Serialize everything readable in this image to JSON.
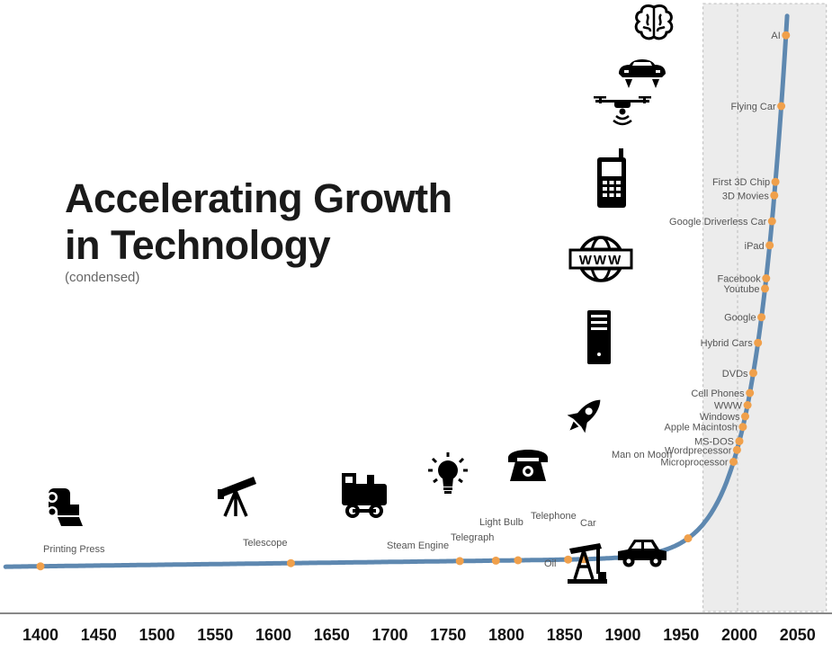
{
  "title_line1": "Accelerating Growth",
  "title_line2": "in Technology",
  "subtitle": "(condensed)",
  "colors": {
    "curve": "#5e88b0",
    "dot": "#f0a04b",
    "axis": "#888888",
    "label": "#555555",
    "future_band": "#ececec"
  },
  "chart_data": {
    "type": "line",
    "xlim": [
      1380,
      2055
    ],
    "x_ticks": [
      1400,
      1450,
      1500,
      1550,
      1600,
      1650,
      1700,
      1750,
      1800,
      1850,
      1900,
      1950,
      2000,
      2050
    ],
    "future_region": [
      1975,
      2050
    ],
    "events": [
      {
        "label": "Printing Press",
        "year": 1400,
        "icon": "printing-press-icon"
      },
      {
        "label": "Telescope",
        "year": 1615,
        "icon": "telescope-icon"
      },
      {
        "label": "Steam Engine",
        "year": 1760,
        "icon": "train-icon"
      },
      {
        "label": "Telegraph",
        "year": 1791,
        "icon": "light-bulb-icon"
      },
      {
        "label": "Light Bulb",
        "year": 1810
      },
      {
        "label": "Oil",
        "year": 1853,
        "icon": "oil-pump-icon"
      },
      {
        "label": "Telephone",
        "year": 1866,
        "icon": "telephone-icon"
      },
      {
        "label": "Car",
        "year": 1867,
        "icon": "car-icon"
      },
      {
        "label": "Man on Moon",
        "year": 1956,
        "icon": "rocket-icon"
      },
      {
        "label": "Microprocessor",
        "year": 1995,
        "icon": "computer-tower-icon"
      },
      {
        "label": "Wordprecessor",
        "year": 1998
      },
      {
        "label": "MS-DOS",
        "year": 2000
      },
      {
        "label": "Apple Macintosh",
        "year": 2003
      },
      {
        "label": "Windows",
        "year": 2005,
        "icon": "www-globe-icon"
      },
      {
        "label": "WWW",
        "year": 2007
      },
      {
        "label": "Cell Phones",
        "year": 2009
      },
      {
        "label": "DVDs",
        "year": 2012,
        "icon": "cell-phone-icon"
      },
      {
        "label": "Hybrid Cars",
        "year": 2016
      },
      {
        "label": "Google",
        "year": 2019
      },
      {
        "label": "Youtube",
        "year": 2022
      },
      {
        "label": "Facebook",
        "year": 2023
      },
      {
        "label": "iPad",
        "year": 2026
      },
      {
        "label": "Google Driverless Car",
        "year": 2028,
        "icon": "drone-icon"
      },
      {
        "label": "3D Movies",
        "year": 2030
      },
      {
        "label": "First 3D Chip",
        "year": 2031
      },
      {
        "label": "Flying Car",
        "year": 2036,
        "icon": "flying-car-icon"
      },
      {
        "label": "AI",
        "year": 2040,
        "icon": "brain-icon"
      }
    ]
  }
}
